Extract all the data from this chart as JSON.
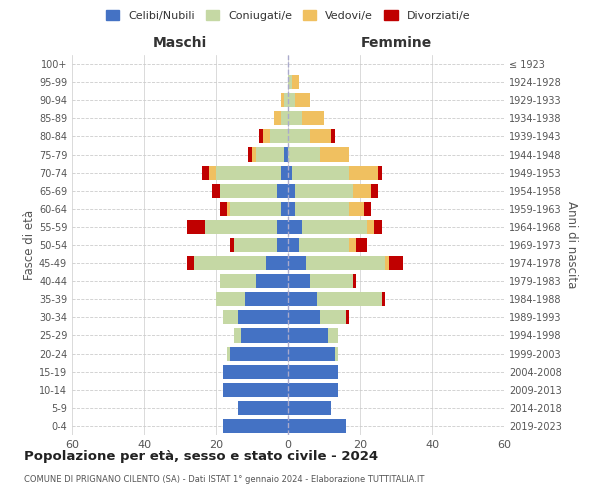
{
  "age_groups": [
    "0-4",
    "5-9",
    "10-14",
    "15-19",
    "20-24",
    "25-29",
    "30-34",
    "35-39",
    "40-44",
    "45-49",
    "50-54",
    "55-59",
    "60-64",
    "65-69",
    "70-74",
    "75-79",
    "80-84",
    "85-89",
    "90-94",
    "95-99",
    "100+"
  ],
  "birth_years": [
    "2019-2023",
    "2014-2018",
    "2009-2013",
    "2004-2008",
    "1999-2003",
    "1994-1998",
    "1989-1993",
    "1984-1988",
    "1979-1983",
    "1974-1978",
    "1969-1973",
    "1964-1968",
    "1959-1963",
    "1954-1958",
    "1949-1953",
    "1944-1948",
    "1939-1943",
    "1934-1938",
    "1929-1933",
    "1924-1928",
    "≤ 1923"
  ],
  "maschi": {
    "celibi": [
      18,
      14,
      18,
      18,
      16,
      13,
      14,
      12,
      9,
      6,
      3,
      3,
      2,
      3,
      2,
      1,
      0,
      0,
      0,
      0,
      0
    ],
    "coniugati": [
      0,
      0,
      0,
      0,
      1,
      2,
      4,
      8,
      10,
      20,
      12,
      20,
      14,
      16,
      18,
      8,
      5,
      2,
      1,
      0,
      0
    ],
    "vedovi": [
      0,
      0,
      0,
      0,
      0,
      0,
      0,
      0,
      0,
      0,
      0,
      0,
      1,
      0,
      2,
      1,
      2,
      2,
      1,
      0,
      0
    ],
    "divorziati": [
      0,
      0,
      0,
      0,
      0,
      0,
      0,
      0,
      0,
      2,
      1,
      5,
      2,
      2,
      2,
      1,
      1,
      0,
      0,
      0,
      0
    ]
  },
  "femmine": {
    "nubili": [
      16,
      12,
      14,
      14,
      13,
      11,
      9,
      8,
      6,
      5,
      3,
      4,
      2,
      2,
      1,
      0,
      0,
      0,
      0,
      0,
      0
    ],
    "coniugate": [
      0,
      0,
      0,
      0,
      1,
      3,
      7,
      18,
      12,
      22,
      14,
      18,
      15,
      16,
      16,
      9,
      6,
      4,
      2,
      1,
      0
    ],
    "vedove": [
      0,
      0,
      0,
      0,
      0,
      0,
      0,
      0,
      0,
      1,
      2,
      2,
      4,
      5,
      8,
      8,
      6,
      6,
      4,
      2,
      0
    ],
    "divorziate": [
      0,
      0,
      0,
      0,
      0,
      0,
      1,
      1,
      1,
      4,
      3,
      2,
      2,
      2,
      1,
      0,
      1,
      0,
      0,
      0,
      0
    ]
  },
  "colors": {
    "celibi": "#4472c4",
    "coniugati": "#c5d8a4",
    "vedovi": "#f0c060",
    "divorziati": "#c00000"
  },
  "xlim": 60,
  "title": "Popolazione per età, sesso e stato civile - 2024",
  "subtitle": "COMUNE DI PRIGNANO CILENTO (SA) - Dati ISTAT 1° gennaio 2024 - Elaborazione TUTTITALIA.IT",
  "ylabel_left": "Fasce di età",
  "ylabel_right": "Anni di nascita",
  "xlabel_maschi": "Maschi",
  "xlabel_femmine": "Femmine",
  "bg_color": "#ffffff",
  "grid_color": "#cccccc"
}
